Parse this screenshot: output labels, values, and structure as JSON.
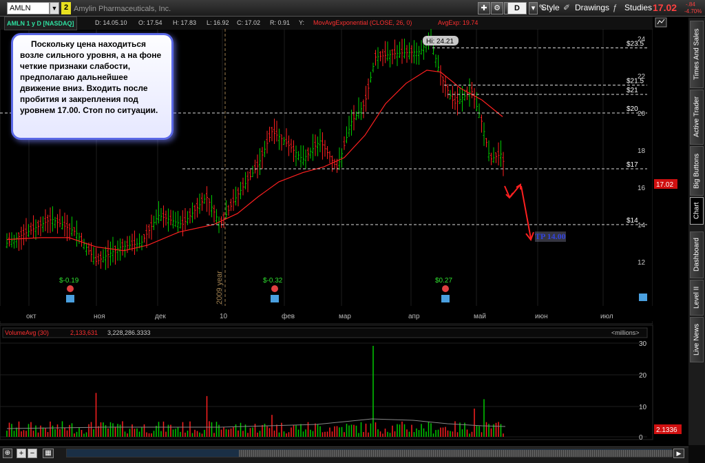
{
  "toolbar": {
    "symbol": "AMLN",
    "link_badge": "2",
    "company": "Amylin Pharmaceuticals, Inc.",
    "period_btn": "D",
    "style_btn": "Style",
    "drawings_btn": "Drawings",
    "studies_btn": "Studies",
    "last_price": "17.02",
    "change_abs": "-.84",
    "change_pct": "-4.70%"
  },
  "header": {
    "chart_label": "AMLN 1 y D [NASDAQ]",
    "date": "D: 14.05.10",
    "open": "O: 17.54",
    "high": "H: 17.83",
    "low": "L: 16.92",
    "close": "C: 17.02",
    "range": "R: 0.91",
    "y": "Y:",
    "study": "MovAvgExponential (CLOSE, 26, 0)",
    "study_value": "AvgExp: 19.74"
  },
  "note": "Поскольку цена находиться возле сильного уровня, а на фоне четкие признаки слабости, предполагаю дальнейшее движение вниз. Входить после пробития и закрепления под уровнем 17.00. Стоп по ситуации.",
  "annotations": {
    "hi_label": "Hi: 24.21",
    "tp_label": "TP 14.00",
    "year_label": "2009 year",
    "levels": [
      {
        "label": "$23.5",
        "price": 23.5
      },
      {
        "label": "$21.5",
        "price": 21.5
      },
      {
        "label": "$21",
        "price": 21.0
      },
      {
        "label": "$20",
        "price": 20.0
      },
      {
        "label": "$17",
        "price": 17.0
      },
      {
        "label": "$14",
        "price": 14.0
      }
    ],
    "earnings": [
      "$-0.19",
      "$-0.32",
      "$0.27"
    ],
    "price_bubble": "17.02"
  },
  "axes": {
    "price_ticks": [
      "24",
      "22",
      "20",
      "18",
      "16",
      "14",
      "12"
    ],
    "months": [
      "окт",
      "ноя",
      "дек",
      "10",
      "фев",
      "мар",
      "апр",
      "май",
      "июн",
      "июл"
    ],
    "volume_ticks": [
      "30",
      "20",
      "10",
      "0"
    ]
  },
  "volume": {
    "label": "VolumeAvg (30)",
    "avg": "2,133,631",
    "value": "3,228,286.3333",
    "units": "<millions>",
    "bubble": "2.1336"
  },
  "right_tabs": [
    "Times And Sales",
    "Active Trader",
    "Big Buttons",
    "Chart",
    "Dashboard",
    "Level II",
    "Live News"
  ],
  "colors": {
    "up": "#00cc00",
    "down": "#ff2020",
    "ema": "#ff2020",
    "accent": "#3344dd"
  },
  "chart_data": {
    "type": "ohlc",
    "ylim": [
      11,
      25
    ],
    "series": [
      {
        "name": "MovAvgExponential (CLOSE, 26, 0)",
        "values": [
          13.2,
          13.3,
          13.4,
          13.3,
          13.1,
          12.8,
          12.6,
          12.5,
          12.6,
          12.8,
          13.0,
          13.3,
          13.6,
          13.9,
          14.0,
          14.2,
          14.6,
          15.4,
          16.2,
          16.8,
          17.0,
          17.1,
          17.3,
          17.5,
          18.3,
          19.8,
          21.2,
          21.8,
          22.3,
          21.8,
          21.0,
          20.5,
          19.9
        ]
      }
    ]
  }
}
